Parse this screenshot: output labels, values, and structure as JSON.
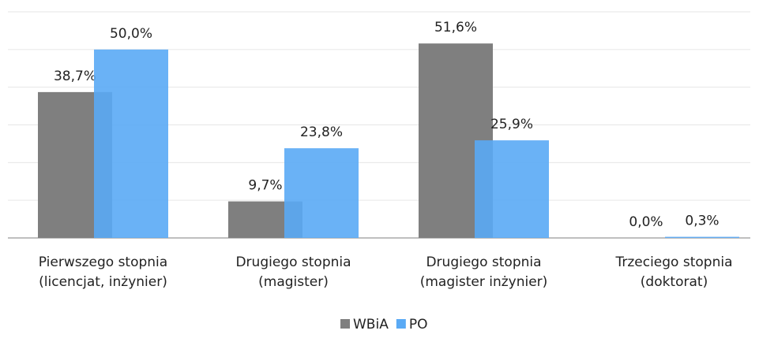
{
  "chart_data": {
    "type": "bar",
    "categories": [
      "Pierwszego stopnia (licencjat, inżynier)",
      "Drugiego stopnia (magister)",
      "Drugiego stopnia (magister inżynier)",
      "Trzeciego stopnia (doktorat)"
    ],
    "series": [
      {
        "name": "WBiA",
        "color": "#7f7f7f",
        "values": [
          38.7,
          9.7,
          51.6,
          0.0
        ],
        "value_labels": [
          "38,7%",
          "9,7%",
          "51,6%",
          "0,0%"
        ]
      },
      {
        "name": "PO",
        "color": "#5aaaf5",
        "values": [
          50.0,
          23.8,
          25.9,
          0.3
        ],
        "value_labels": [
          "50,0%",
          "23,8%",
          "25,9%",
          "0,3%"
        ]
      }
    ],
    "ylim": [
      0,
      60
    ],
    "yticks": [
      0,
      10,
      20,
      30,
      40,
      50,
      60
    ],
    "grid": true,
    "legend": "bottom"
  }
}
